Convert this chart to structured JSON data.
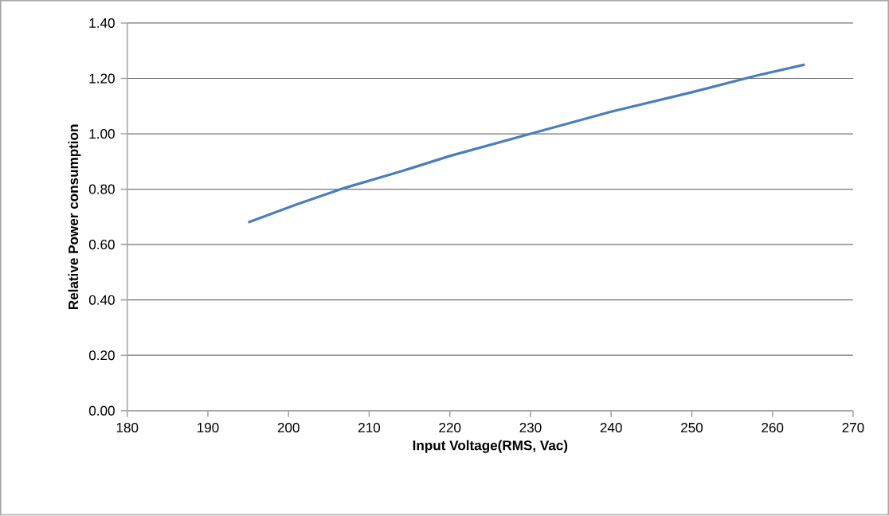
{
  "chart_data": {
    "type": "line",
    "xlabel": "Input Voltage(RMS, Vac)",
    "ylabel": "Relative Power consumption",
    "x": [
      195,
      201,
      207,
      214,
      220,
      230,
      240,
      250,
      258,
      264
    ],
    "series": [
      {
        "color": "#4a7ebb",
        "values": [
          0.68,
          0.745,
          0.805,
          0.865,
          0.92,
          1.0,
          1.08,
          1.15,
          1.21,
          1.25
        ]
      }
    ],
    "xlim": [
      180,
      270
    ],
    "xticks": [
      180,
      190,
      200,
      210,
      220,
      230,
      240,
      250,
      260,
      270
    ],
    "ylim": [
      0,
      1.4
    ],
    "yticks": [
      {
        "value": 0,
        "label": "0.00"
      },
      {
        "value": 0.2,
        "label": "0.20"
      },
      {
        "value": 0.4,
        "label": "0.40"
      },
      {
        "value": 0.6,
        "label": "0.60"
      },
      {
        "value": 0.8,
        "label": "0.80"
      },
      {
        "value": 1.0,
        "label": "1.00"
      },
      {
        "value": 1.2,
        "label": "1.20"
      },
      {
        "value": 1.4,
        "label": "1.40"
      }
    ],
    "grid": "y",
    "marker": "none",
    "line_style": "solid"
  }
}
